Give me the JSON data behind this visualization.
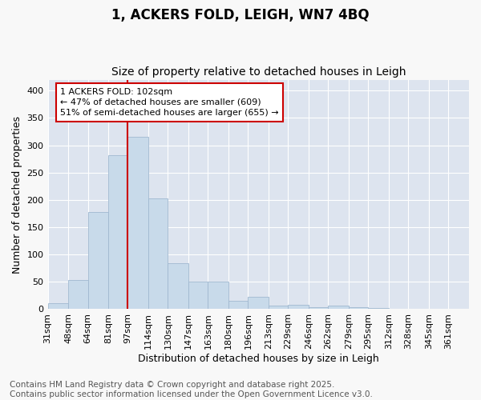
{
  "title_line1": "1, ACKERS FOLD, LEIGH, WN7 4BQ",
  "title_line2": "Size of property relative to detached houses in Leigh",
  "xlabel": "Distribution of detached houses by size in Leigh",
  "ylabel": "Number of detached properties",
  "bar_color": "#c8daea",
  "bar_edge_color": "#a0b8d0",
  "background_color": "#dde4ef",
  "grid_color": "#ffffff",
  "vline_x": 97,
  "vline_color": "#cc0000",
  "categories": [
    "31sqm",
    "48sqm",
    "64sqm",
    "81sqm",
    "97sqm",
    "114sqm",
    "130sqm",
    "147sqm",
    "163sqm",
    "180sqm",
    "196sqm",
    "213sqm",
    "229sqm",
    "246sqm",
    "262sqm",
    "279sqm",
    "295sqm",
    "312sqm",
    "328sqm",
    "345sqm",
    "361sqm"
  ],
  "bin_edges": [
    31,
    48,
    64,
    81,
    97,
    114,
    130,
    147,
    163,
    180,
    196,
    213,
    229,
    246,
    262,
    279,
    295,
    312,
    328,
    345,
    361,
    378
  ],
  "values": [
    11,
    53,
    178,
    282,
    316,
    202,
    84,
    51,
    50,
    15,
    22,
    6,
    8,
    4,
    6,
    4,
    2,
    1,
    1,
    1,
    0
  ],
  "ylim": [
    0,
    420
  ],
  "yticks": [
    0,
    50,
    100,
    150,
    200,
    250,
    300,
    350,
    400
  ],
  "annotation_text": "1 ACKERS FOLD: 102sqm\n← 47% of detached houses are smaller (609)\n51% of semi-detached houses are larger (655) →",
  "annotation_box_color": "#ffffff",
  "annotation_edge_color": "#cc0000",
  "footer_text": "Contains HM Land Registry data © Crown copyright and database right 2025.\nContains public sector information licensed under the Open Government Licence v3.0.",
  "fig_background": "#f8f8f8",
  "title_fontsize": 12,
  "subtitle_fontsize": 10,
  "axis_label_fontsize": 9,
  "tick_fontsize": 8,
  "annotation_fontsize": 8,
  "footer_fontsize": 7.5
}
